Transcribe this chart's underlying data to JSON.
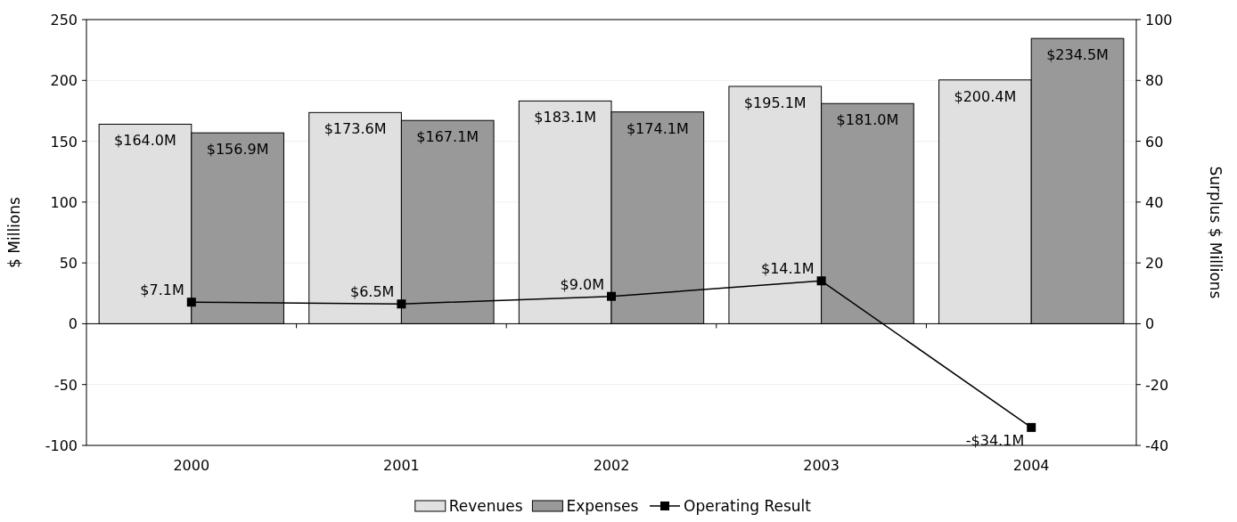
{
  "chart_data": {
    "type": "bar",
    "categories": [
      "2000",
      "2001",
      "2002",
      "2003",
      "2004"
    ],
    "ylabel": "$ Millions",
    "y2label": "Surplus $ Millions",
    "ylim": [
      -100,
      250
    ],
    "yticks": [
      -100,
      -50,
      0,
      50,
      100,
      150,
      200,
      250
    ],
    "y2lim": [
      -40,
      100
    ],
    "y2ticks": [
      -40,
      -20,
      0,
      20,
      40,
      60,
      80,
      100
    ],
    "grid": "y",
    "legend": "bottom",
    "series": [
      {
        "name": "Revenues",
        "color": "#e0e0e0",
        "values": [
          164.0,
          173.6,
          183.1,
          195.1,
          200.4
        ],
        "value_labels": [
          "$164.0M",
          "$173.6M",
          "$183.1M",
          "$195.1M",
          "$200.4M"
        ]
      },
      {
        "name": "Expenses",
        "color": "#999999",
        "values": [
          156.9,
          167.1,
          174.1,
          181.0,
          234.5
        ],
        "value_labels": [
          "$156.9M",
          "$167.1M",
          "$174.1M",
          "$181.0M",
          "$234.5M"
        ]
      },
      {
        "name": "Operating Result",
        "type": "line",
        "axis": "y2",
        "color": "#000000",
        "marker": "square",
        "values": [
          7.1,
          6.5,
          9.0,
          14.1,
          -34.1
        ],
        "value_labels": [
          "$7.1M",
          "$6.5M",
          "$9.0M",
          "$14.1M",
          "-$34.1M"
        ]
      }
    ]
  }
}
